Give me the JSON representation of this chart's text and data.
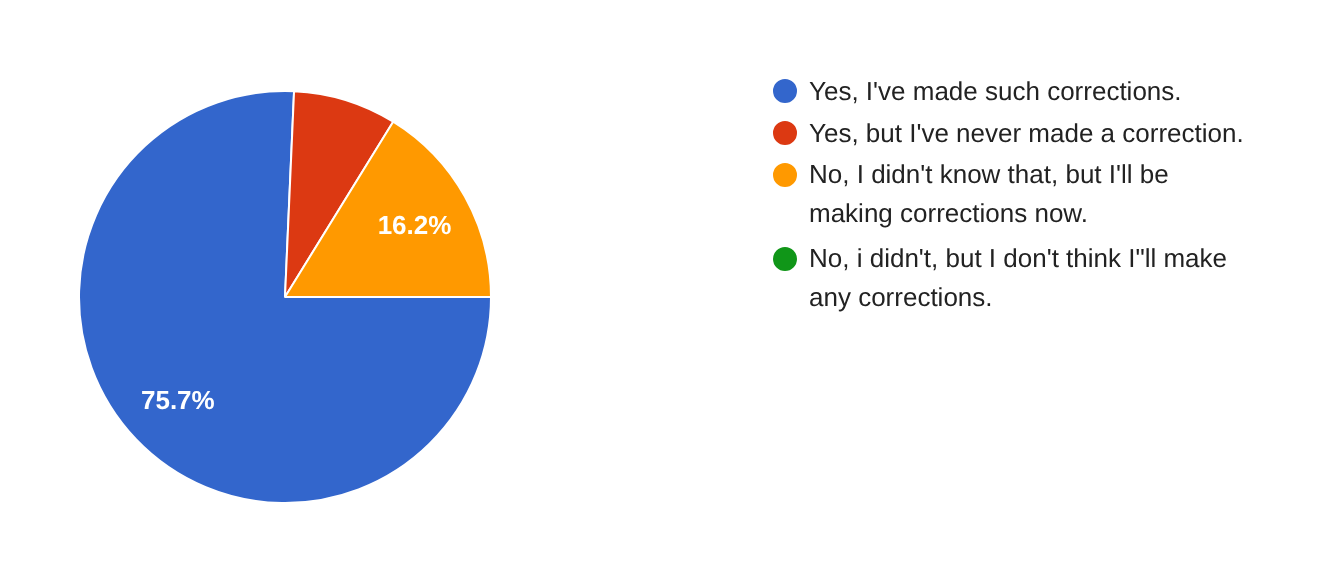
{
  "chart_data": {
    "type": "pie",
    "categories": [
      "Yes, I've made such corrections.",
      "Yes, but I've never made a correction.",
      "No, I didn't know that, but I'll be making corrections now.",
      "No, i didn't, but I don't think I\"ll make any corrections."
    ],
    "values": [
      75.7,
      8.1,
      16.2,
      0
    ],
    "colors": [
      "#3366cc",
      "#dc3912",
      "#ff9900",
      "#109618"
    ],
    "value_labels": [
      "75.7%",
      null,
      "16.2%",
      null
    ],
    "legend": "right"
  }
}
